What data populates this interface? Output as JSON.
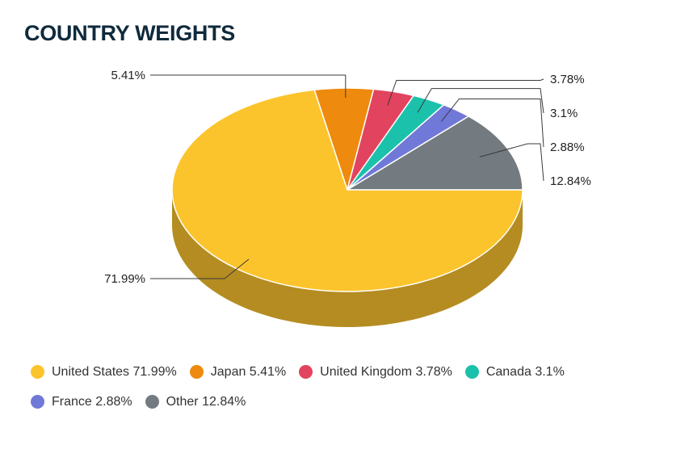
{
  "title": "COUNTRY WEIGHTS",
  "chart_data": {
    "type": "pie",
    "style": "3d",
    "slices": [
      {
        "name": "United States",
        "value": 71.99,
        "label": "71.99%",
        "legend": "United States 71.99%",
        "color": "#fcc42c",
        "side_color": "#b48c21"
      },
      {
        "name": "Japan",
        "value": 5.41,
        "label": "5.41%",
        "legend": "Japan 5.41%",
        "color": "#ee8a0d",
        "side_color": "#a96209"
      },
      {
        "name": "United Kingdom",
        "value": 3.78,
        "label": "3.78%",
        "legend": "United Kingdom 3.78%",
        "color": "#e2435e",
        "side_color": "#a02f43"
      },
      {
        "name": "Canada",
        "value": 3.1,
        "label": "3.1%",
        "legend": "Canada 3.1%",
        "color": "#1bc1aa",
        "side_color": "#138979"
      },
      {
        "name": "France",
        "value": 2.88,
        "label": "2.88%",
        "legend": "France 2.88%",
        "color": "#7079d8",
        "side_color": "#50569a"
      },
      {
        "name": "Other",
        "value": 12.84,
        "label": "12.84%",
        "legend": "Other 12.84%",
        "color": "#737b80",
        "side_color": "#52585b"
      }
    ],
    "legend_position": "bottom"
  }
}
